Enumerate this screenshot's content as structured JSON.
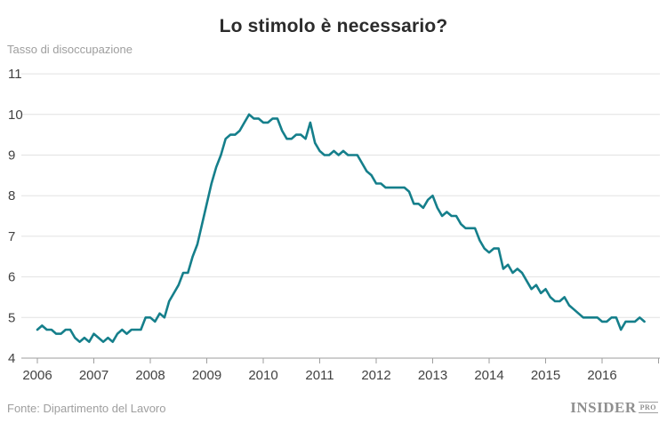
{
  "chart_data": {
    "type": "line",
    "title": "Lo stimolo è necessario?",
    "ylabel": "Tasso di disoccupazione",
    "source": "Fonte: Dipartimento del Lavoro",
    "x_tick_labels": [
      "2006",
      "2007",
      "2008",
      "2009",
      "2010",
      "2011",
      "2012",
      "2013",
      "2014",
      "2015",
      "2016"
    ],
    "y_ticks": [
      4,
      5,
      6,
      7,
      8,
      9,
      10,
      11
    ],
    "ylim": [
      4,
      11
    ],
    "grid": true,
    "line_color": "#157f8b",
    "series": [
      {
        "name": "Tasso di disoccupazione",
        "start": "2006-01",
        "frequency": "monthly",
        "values": [
          4.7,
          4.8,
          4.7,
          4.7,
          4.6,
          4.6,
          4.7,
          4.7,
          4.5,
          4.4,
          4.5,
          4.4,
          4.6,
          4.5,
          4.4,
          4.5,
          4.4,
          4.6,
          4.7,
          4.6,
          4.7,
          4.7,
          4.7,
          5.0,
          5.0,
          4.9,
          5.1,
          5.0,
          5.4,
          5.6,
          5.8,
          6.1,
          6.1,
          6.5,
          6.8,
          7.3,
          7.8,
          8.3,
          8.7,
          9.0,
          9.4,
          9.5,
          9.5,
          9.6,
          9.8,
          10.0,
          9.9,
          9.9,
          9.8,
          9.8,
          9.9,
          9.9,
          9.6,
          9.4,
          9.4,
          9.5,
          9.5,
          9.4,
          9.8,
          9.3,
          9.1,
          9.0,
          9.0,
          9.1,
          9.0,
          9.1,
          9.0,
          9.0,
          9.0,
          8.8,
          8.6,
          8.5,
          8.3,
          8.3,
          8.2,
          8.2,
          8.2,
          8.2,
          8.2,
          8.1,
          7.8,
          7.8,
          7.7,
          7.9,
          8.0,
          7.7,
          7.5,
          7.6,
          7.5,
          7.5,
          7.3,
          7.2,
          7.2,
          7.2,
          6.9,
          6.7,
          6.6,
          6.7,
          6.7,
          6.2,
          6.3,
          6.1,
          6.2,
          6.1,
          5.9,
          5.7,
          5.8,
          5.6,
          5.7,
          5.5,
          5.4,
          5.4,
          5.5,
          5.3,
          5.2,
          5.1,
          5.0,
          5.0,
          5.0,
          5.0,
          4.9,
          4.9,
          5.0,
          5.0,
          4.7,
          4.9,
          4.9,
          4.9,
          5.0,
          4.9
        ]
      }
    ]
  },
  "footer": {
    "logo_main": "INSIDER",
    "logo_sub": "PRO"
  },
  "colors": {
    "line": "#157f8b",
    "grid": "#e2e2e2",
    "axis": "#9e9e9e",
    "tick_label": "#424242",
    "muted_text": "#9e9e9e",
    "title_text": "#2b2b2b"
  }
}
